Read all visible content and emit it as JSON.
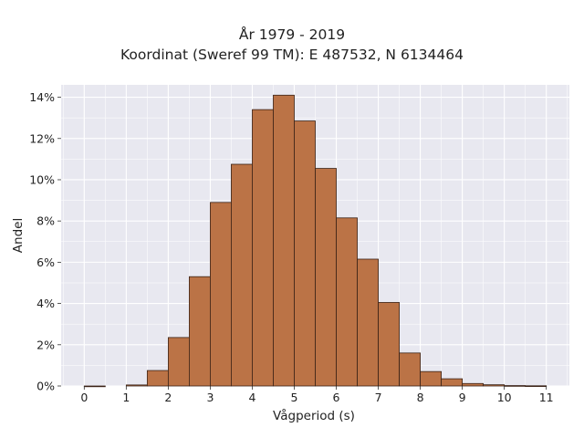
{
  "chart_data": {
    "type": "bar",
    "title": "År 1979 - 2019",
    "subtitle": "Koordinat (Sweref 99 TM): E 487532, N 6134464",
    "xlabel": "Vågperiod (s)",
    "ylabel": "Andel",
    "bin_width": 0.5,
    "bins": [
      {
        "x0": 0.0,
        "x1": 0.5,
        "value": 0.0
      },
      {
        "x0": 1.0,
        "x1": 1.5,
        "value": 0.05
      },
      {
        "x0": 1.5,
        "x1": 2.0,
        "value": 0.75
      },
      {
        "x0": 2.0,
        "x1": 2.5,
        "value": 2.35
      },
      {
        "x0": 2.5,
        "x1": 3.0,
        "value": 5.3
      },
      {
        "x0": 3.0,
        "x1": 3.5,
        "value": 8.9
      },
      {
        "x0": 3.5,
        "x1": 4.0,
        "value": 10.75
      },
      {
        "x0": 4.0,
        "x1": 4.5,
        "value": 13.4
      },
      {
        "x0": 4.5,
        "x1": 5.0,
        "value": 14.1
      },
      {
        "x0": 5.0,
        "x1": 5.5,
        "value": 12.85
      },
      {
        "x0": 5.5,
        "x1": 6.0,
        "value": 10.55
      },
      {
        "x0": 6.0,
        "x1": 6.5,
        "value": 8.15
      },
      {
        "x0": 6.5,
        "x1": 7.0,
        "value": 6.15
      },
      {
        "x0": 7.0,
        "x1": 7.5,
        "value": 4.05
      },
      {
        "x0": 7.5,
        "x1": 8.0,
        "value": 1.6
      },
      {
        "x0": 8.0,
        "x1": 8.5,
        "value": 0.7
      },
      {
        "x0": 8.5,
        "x1": 9.0,
        "value": 0.35
      },
      {
        "x0": 9.0,
        "x1": 9.5,
        "value": 0.12
      },
      {
        "x0": 9.5,
        "x1": 10.0,
        "value": 0.06
      },
      {
        "x0": 10.0,
        "x1": 10.5,
        "value": 0.02
      },
      {
        "x0": 10.5,
        "x1": 11.0,
        "value": 0.01
      }
    ],
    "xlim": [
      -0.55,
      11.55
    ],
    "ylim": [
      0,
      14.6
    ],
    "xticks": [
      0,
      1,
      2,
      3,
      4,
      5,
      6,
      7,
      8,
      9,
      10,
      11
    ],
    "xtick_labels": [
      "0",
      "1",
      "2",
      "3",
      "4",
      "5",
      "6",
      "7",
      "8",
      "9",
      "10",
      "11"
    ],
    "yticks": [
      0,
      2,
      4,
      6,
      8,
      10,
      12,
      14
    ],
    "ytick_labels": [
      "0%",
      "2%",
      "4%",
      "6%",
      "8%",
      "10%",
      "12%",
      "14%"
    ],
    "grid": true,
    "colors": {
      "bar_fill": "#bb7346",
      "bar_edge": "#3a2216",
      "plot_background": "#e8e8f0",
      "grid": "#ffffff"
    }
  }
}
